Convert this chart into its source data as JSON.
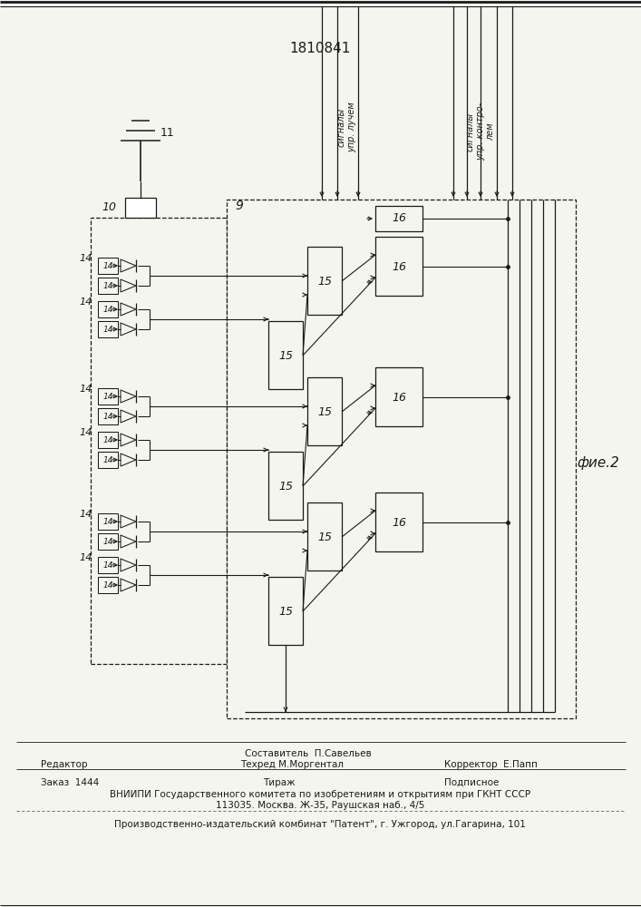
{
  "title": "1810841",
  "fig_label": "фие.2",
  "l9": "9",
  "l10": "10",
  "l11": "11",
  "l14": "14",
  "l15": "15",
  "l16": "16",
  "text_beam": "сигналы\nупр. лучем",
  "text_ctrl": "сигналы\nупр. контро-\nлем",
  "footer_comp": "Составитель  П.Савельев",
  "footer_editor": "Редактор",
  "footer_tech": "Техред М.Моргентал",
  "footer_corr": "Корректор  Е.Папп",
  "footer_order": "Заказ  1444",
  "footer_tir": "Тираж",
  "footer_sub": "Подписное",
  "footer_org1": "ВНИИПИ Государственного комитета по изобретениям и открытиям при ГКНТ СССР",
  "footer_org2": "113035. Москва. Ж-35, Раушская наб., 4/5",
  "footer_plant": "Производственно-издательский комбинат \"Патент\", г. Ужгород, ул.Гагарина, 101",
  "bg": "#f5f5f0",
  "lc": "#1a1a1a"
}
